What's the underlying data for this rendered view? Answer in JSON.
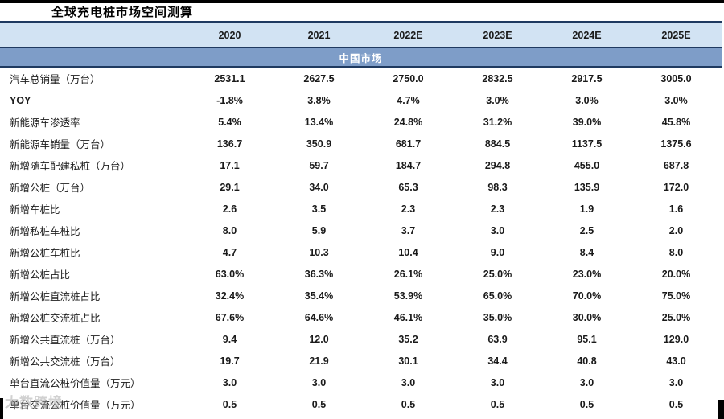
{
  "page": {
    "title": "全球充电桩市场空间测算"
  },
  "table": {
    "section_header": "中国市场",
    "columns": [
      "2020",
      "2021",
      "2022E",
      "2023E",
      "2024E",
      "2025E"
    ],
    "rows": [
      {
        "label": "汽车总销量（万台）",
        "values": [
          "2531.1",
          "2627.5",
          "2750.0",
          "2832.5",
          "2917.5",
          "3005.0"
        ]
      },
      {
        "label": "YOY",
        "values": [
          "-1.8%",
          "3.8%",
          "4.7%",
          "3.0%",
          "3.0%",
          "3.0%"
        ]
      },
      {
        "label": "新能源车渗透率",
        "values": [
          "5.4%",
          "13.4%",
          "24.8%",
          "31.2%",
          "39.0%",
          "45.8%"
        ]
      },
      {
        "label": "新能源车销量（万台）",
        "values": [
          "136.7",
          "350.9",
          "681.7",
          "884.5",
          "1137.5",
          "1375.6"
        ]
      },
      {
        "label": "新增随车配建私桩（万台）",
        "values": [
          "17.1",
          "59.7",
          "184.7",
          "294.8",
          "455.0",
          "687.8"
        ]
      },
      {
        "label": "新增公桩（万台）",
        "values": [
          "29.1",
          "34.0",
          "65.3",
          "98.3",
          "135.9",
          "172.0"
        ]
      },
      {
        "label": "新增车桩比",
        "values": [
          "2.6",
          "3.5",
          "2.3",
          "2.3",
          "1.9",
          "1.6"
        ]
      },
      {
        "label": "新增私桩车桩比",
        "values": [
          "8.0",
          "5.9",
          "3.7",
          "3.0",
          "2.5",
          "2.0"
        ]
      },
      {
        "label": "新增公桩车桩比",
        "values": [
          "4.7",
          "10.3",
          "10.4",
          "9.0",
          "8.4",
          "8.0"
        ]
      },
      {
        "label": "新增公桩占比",
        "values": [
          "63.0%",
          "36.3%",
          "26.1%",
          "25.0%",
          "23.0%",
          "20.0%"
        ]
      },
      {
        "label": "新增公桩直流桩占比",
        "values": [
          "32.4%",
          "35.4%",
          "53.9%",
          "65.0%",
          "70.0%",
          "75.0%"
        ]
      },
      {
        "label": "新增公桩交流桩占比",
        "values": [
          "67.6%",
          "64.6%",
          "46.1%",
          "35.0%",
          "30.0%",
          "25.0%"
        ]
      },
      {
        "label": "新增公共直流桩（万台）",
        "values": [
          "9.4",
          "12.0",
          "35.2",
          "63.9",
          "95.1",
          "129.0"
        ]
      },
      {
        "label": "新增公共交流桩（万台）",
        "values": [
          "19.7",
          "21.9",
          "30.1",
          "34.4",
          "40.8",
          "43.0"
        ]
      },
      {
        "label": "单台直流公桩价值量（万元）",
        "values": [
          "3.0",
          "3.0",
          "3.0",
          "3.0",
          "3.0",
          "3.0"
        ]
      },
      {
        "label": "单台交流公桩价值量（万元）",
        "values": [
          "0.5",
          "0.5",
          "0.5",
          "0.5",
          "0.5",
          "0.5"
        ]
      }
    ]
  },
  "watermark": {
    "text": "大数跨境"
  },
  "colors": {
    "header_band": "#d2e3f3",
    "section_band": "#7e9dc8",
    "border_navy": "#1f3a60",
    "band_text": "#ffffff"
  }
}
